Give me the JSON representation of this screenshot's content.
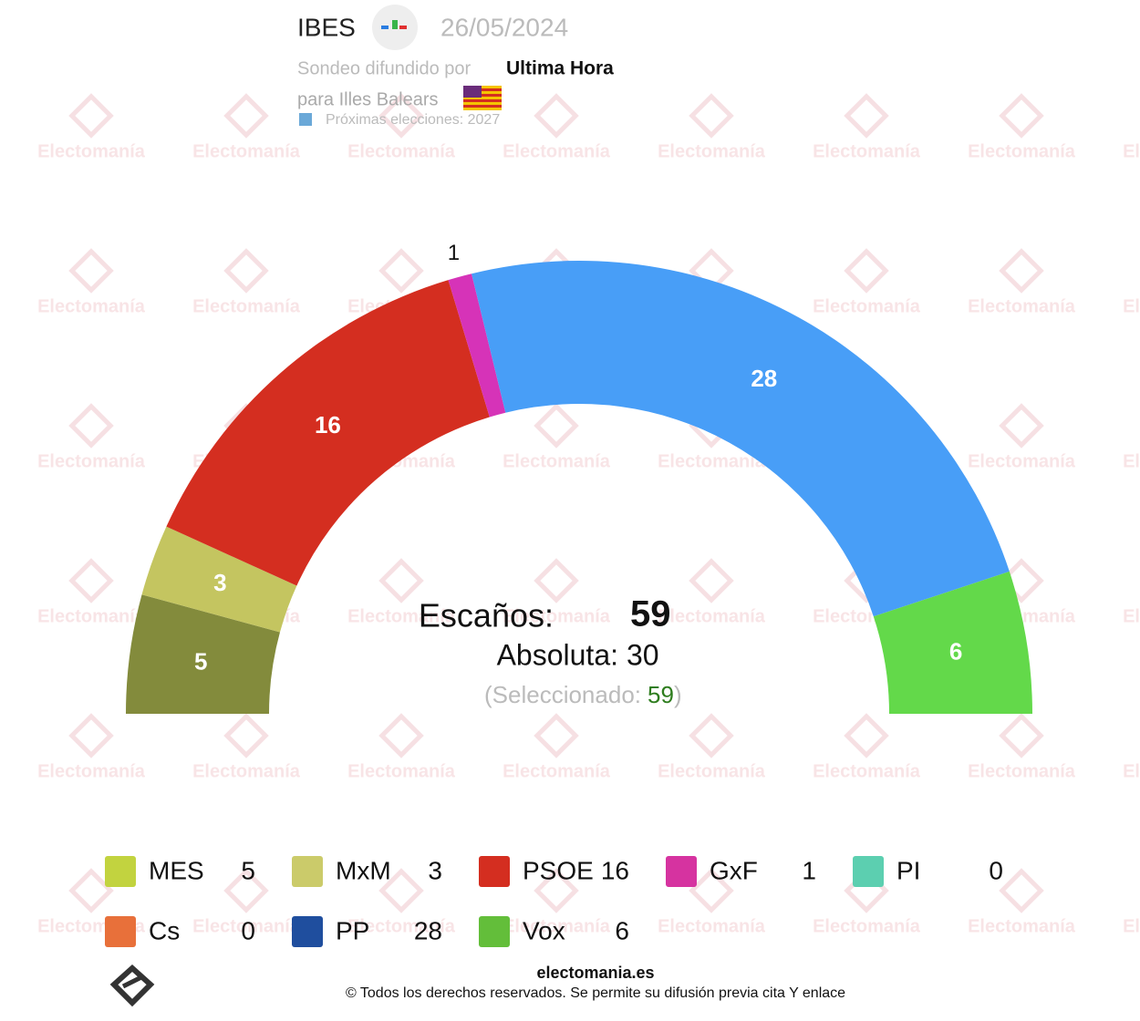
{
  "chart_data": {
    "type": "hemicycle",
    "pollster": "IBES",
    "date": "26/05/2024",
    "published_by_label": "Sondeo difundido por",
    "published_by": "Ultima Hora",
    "region": "para Illes Balears",
    "next_elections": "Próximas elecciones: 2027",
    "watermark": "Electomanía",
    "seats_label": "Escaños:",
    "seats_total": 59,
    "majority_label": "Absoluta:",
    "majority": 30,
    "selected_open": "(Seleccionado:",
    "selected": 59,
    "selected_close": ")",
    "categories": [
      "MES",
      "MxM",
      "PSOE",
      "GxF",
      "PI",
      "Cs",
      "PP",
      "Vox"
    ],
    "values": [
      5,
      3,
      16,
      1,
      0,
      0,
      28,
      6
    ],
    "colors": [
      "#838b3c",
      "#c4c560",
      "#d42e20",
      "#d633b8",
      "#5ccfb0",
      "#e8703a",
      "#489ef7",
      "#63d94a"
    ],
    "icon_colors": [
      "#c2d33f",
      "#cbcb6a",
      "#d42e20",
      "#d633a0",
      "#5ccfb0",
      "#e8703a",
      "#1f4e9e",
      "#63be3a"
    ],
    "footer_site": "electomania.es",
    "footer_rights": "© Todos los derechos reservados. Se permite su difusión previa cita Y enlace"
  }
}
